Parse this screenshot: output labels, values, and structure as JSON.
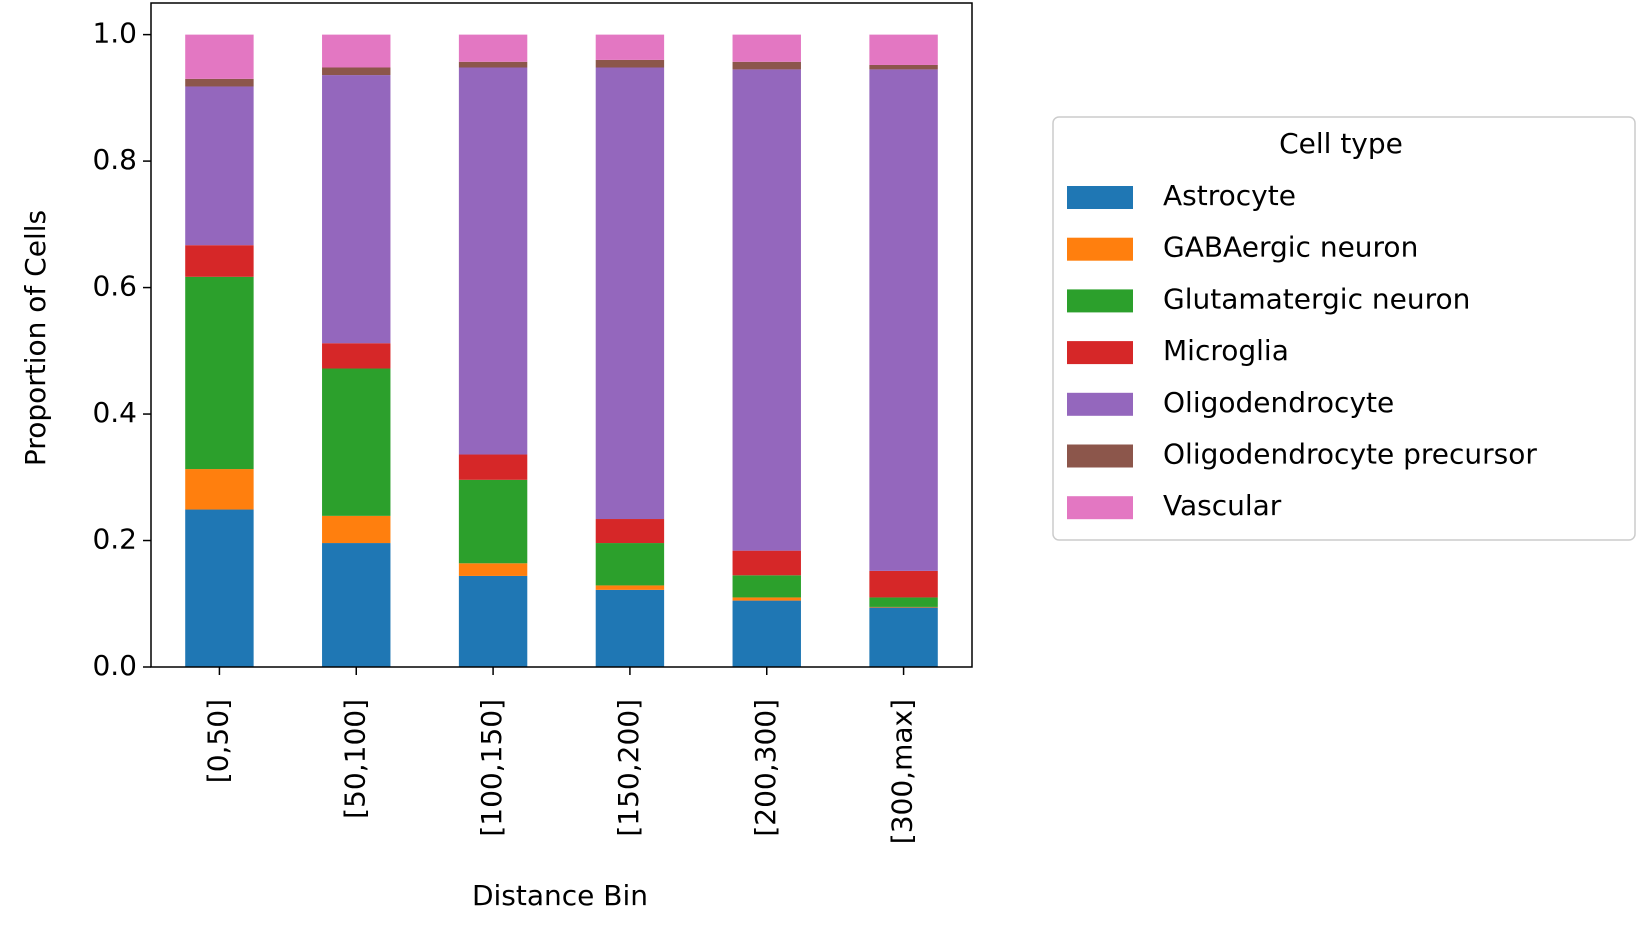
{
  "chart_data": {
    "type": "stacked-bar",
    "x_label": "Distance Bin",
    "y_label": "Proportion of Cells",
    "categories": [
      "[0,50]",
      "[50,100]",
      "[100,150]",
      "[150,200]",
      "[200,300]",
      "[300,max]"
    ],
    "series": [
      {
        "name": "Astrocyte",
        "color": "#1f77b4",
        "values": [
          0.249,
          0.196,
          0.144,
          0.122,
          0.105,
          0.094
        ]
      },
      {
        "name": "GABAergic neuron",
        "color": "#ff7f0e",
        "values": [
          0.064,
          0.043,
          0.02,
          0.007,
          0.005,
          0.001
        ]
      },
      {
        "name": "Glutamatergic neuron",
        "color": "#2ca02c",
        "values": [
          0.304,
          0.233,
          0.132,
          0.067,
          0.035,
          0.015
        ]
      },
      {
        "name": "Microglia",
        "color": "#d62728",
        "values": [
          0.05,
          0.04,
          0.04,
          0.038,
          0.039,
          0.042
        ]
      },
      {
        "name": "Oligodendrocyte",
        "color": "#9467bd",
        "values": [
          0.251,
          0.424,
          0.612,
          0.714,
          0.761,
          0.793
        ]
      },
      {
        "name": "Oligodendrocyte precursor",
        "color": "#8c564b",
        "values": [
          0.012,
          0.012,
          0.009,
          0.012,
          0.012,
          0.007
        ]
      },
      {
        "name": "Vascular",
        "color": "#e377c2",
        "values": [
          0.07,
          0.052,
          0.043,
          0.04,
          0.043,
          0.048
        ]
      }
    ],
    "ylim": [
      0,
      1.05
    ],
    "yticks": [
      {
        "value": 0,
        "label": "0.0"
      },
      {
        "value": 0.2,
        "label": "0.2"
      },
      {
        "value": 0.4,
        "label": "0.4"
      },
      {
        "value": 0.6,
        "label": "0.6"
      },
      {
        "value": 0.8,
        "label": "0.8"
      },
      {
        "value": 1,
        "label": "1.0"
      }
    ],
    "legend_title": "Cell type",
    "legend_position": "right"
  }
}
